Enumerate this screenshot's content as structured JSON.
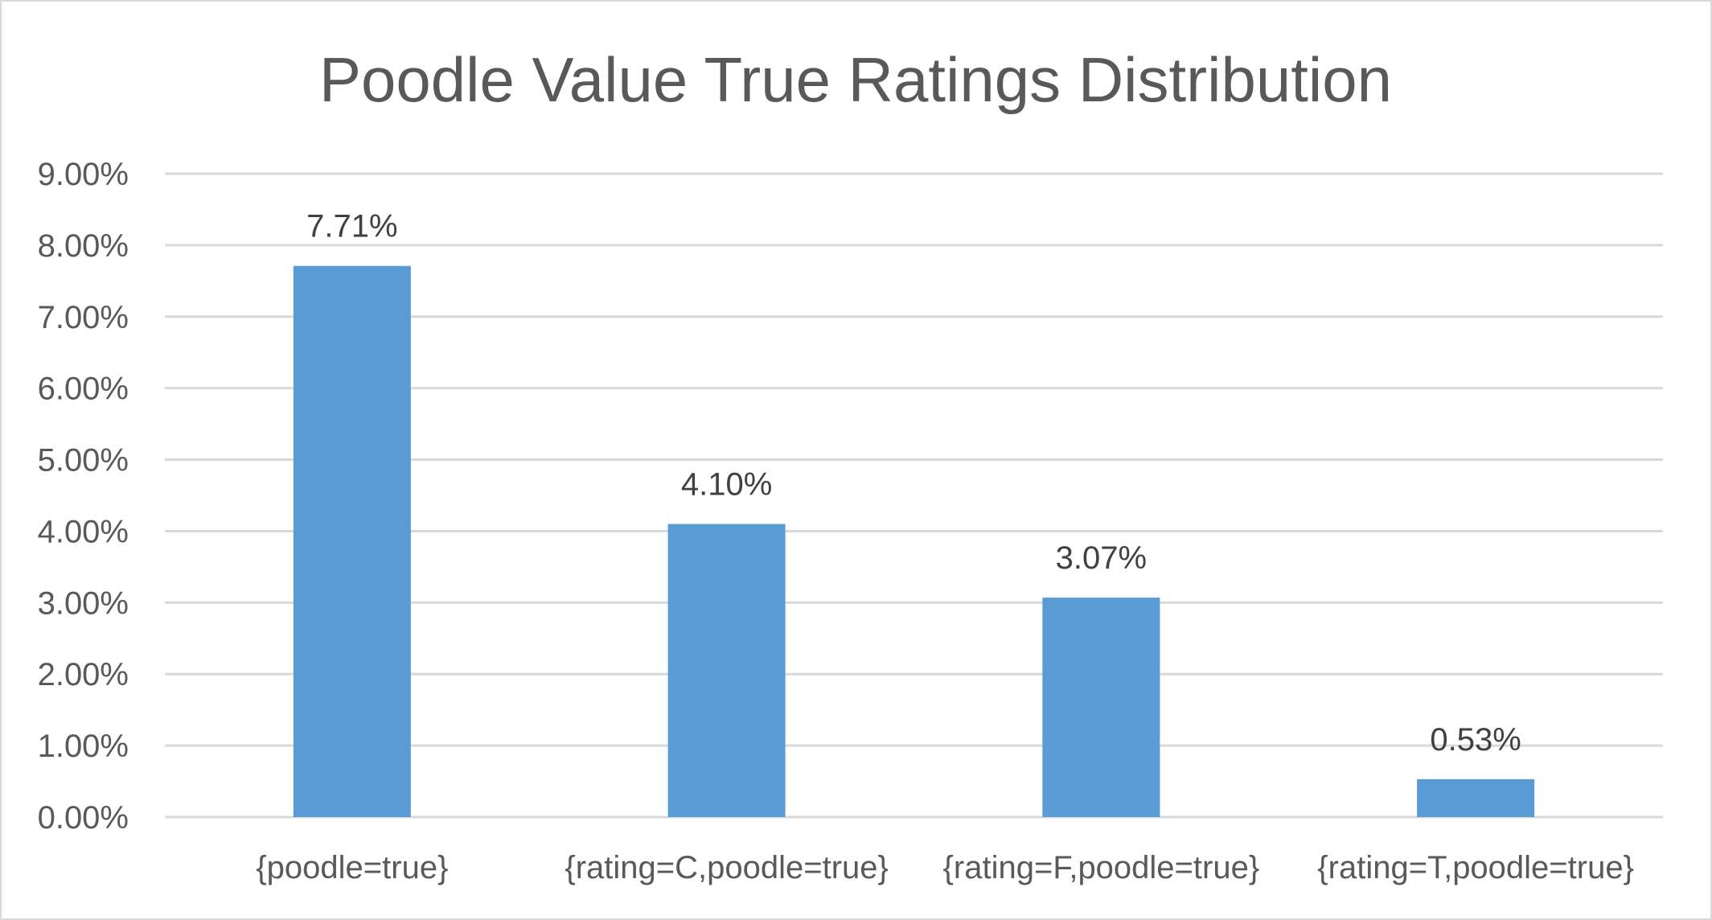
{
  "chart_data": {
    "type": "bar",
    "title": "Poodle Value True Ratings Distribution",
    "xlabel": "",
    "ylabel": "",
    "categories": [
      "{poodle=true}",
      "{rating=C,poodle=true}",
      "{rating=F,poodle=true}",
      "{rating=T,poodle=true}"
    ],
    "values": [
      7.71,
      4.1,
      3.07,
      0.53
    ],
    "data_labels": [
      "7.71%",
      "4.10%",
      "3.07%",
      "0.53%"
    ],
    "ylim": [
      0,
      9
    ],
    "yticks": [
      0,
      1,
      2,
      3,
      4,
      5,
      6,
      7,
      8,
      9
    ],
    "ytick_labels": [
      "0.00%",
      "1.00%",
      "2.00%",
      "3.00%",
      "4.00%",
      "5.00%",
      "6.00%",
      "7.00%",
      "8.00%",
      "9.00%"
    ],
    "grid": true,
    "legend": "none",
    "bar_color": "#5b9bd5",
    "grid_color": "#d9d9d9",
    "text_color": "#595959"
  }
}
